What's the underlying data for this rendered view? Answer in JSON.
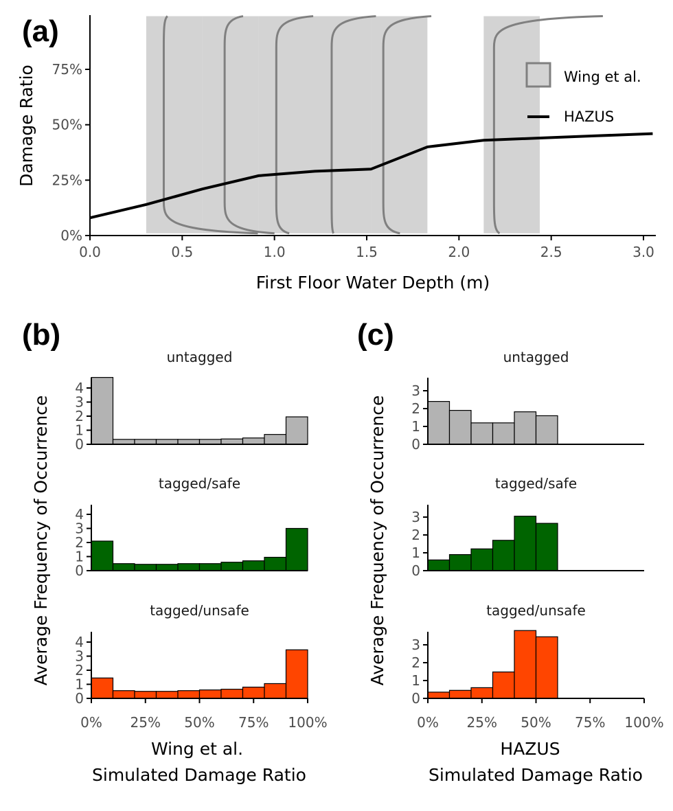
{
  "colors": {
    "hazus_line": "#000000",
    "wing_band": "#d3d3d3",
    "wing_curve": "#808080",
    "untagged": "#b3b3b3",
    "tagged_safe": "#006400",
    "tagged_unsafe": "#ff4500",
    "tick_text": "#4d4d4d"
  },
  "chart_data": [
    {
      "id": "a",
      "panel_label": "(a)",
      "type": "line",
      "xlabel": "First Floor Water Depth (m)",
      "ylabel": "Damage Ratio",
      "xlim": [
        0,
        3.05
      ],
      "ylim": [
        0,
        1.0
      ],
      "x_ticks": [
        0,
        0.5,
        1.0,
        1.5,
        2.0,
        2.5,
        3.0
      ],
      "x_tick_labels": [
        "0.0",
        "0.5",
        "1.0",
        "1.5",
        "2.0",
        "2.5",
        "3.0"
      ],
      "y_ticks": [
        0,
        0.25,
        0.5,
        0.75
      ],
      "y_tick_labels": [
        "0%",
        "25%",
        "50%",
        "75%"
      ],
      "legend_position": "top-right",
      "legend": [
        {
          "name": "Wing et al.",
          "kind": "band"
        },
        {
          "name": "HAZUS",
          "kind": "line"
        }
      ],
      "hazus": {
        "x": [
          0.0,
          0.305,
          0.61,
          0.914,
          1.219,
          1.524,
          1.829,
          2.134,
          2.438,
          2.743,
          3.05
        ],
        "y": [
          0.08,
          0.14,
          0.21,
          0.27,
          0.29,
          0.3,
          0.4,
          0.43,
          0.44,
          0.45,
          0.46
        ]
      },
      "wing_bands": [
        {
          "x_start": 0.305,
          "x_end": 0.61,
          "curve_top_x": 0.42,
          "curve_mid_x": 0.4,
          "curve_bottom_x": 0.91
        },
        {
          "x_start": 0.61,
          "x_end": 0.914,
          "curve_top_x": 0.83,
          "curve_mid_x": 0.73,
          "curve_bottom_x": 1.0
        },
        {
          "x_start": 0.914,
          "x_end": 1.219,
          "curve_top_x": 1.21,
          "curve_mid_x": 1.01,
          "curve_bottom_x": 1.08
        },
        {
          "x_start": 1.219,
          "x_end": 1.524,
          "curve_top_x": 1.55,
          "curve_mid_x": 1.31,
          "curve_bottom_x": 1.32
        },
        {
          "x_start": 1.524,
          "x_end": 1.829,
          "curve_top_x": 1.85,
          "curve_mid_x": 1.59,
          "curve_bottom_x": 1.68
        },
        {
          "x_start": 2.134,
          "x_end": 2.438,
          "curve_top_x": 2.78,
          "curve_mid_x": 2.19,
          "curve_bottom_x": 2.22
        }
      ]
    },
    {
      "id": "b",
      "panel_label": "(b)",
      "type": "bar",
      "xlabel_line1": "Wing et al.",
      "xlabel_line2": "Simulated Damage Ratio",
      "ylabel": "Average Frequency of Occurrence",
      "xlim": [
        0,
        1.0
      ],
      "bin_width": 0.1,
      "bin_starts": [
        0,
        0.1,
        0.2,
        0.3,
        0.4,
        0.5,
        0.6,
        0.7,
        0.8,
        0.9
      ],
      "x_ticks": [
        0,
        0.25,
        0.5,
        0.75,
        1.0
      ],
      "x_tick_labels": [
        "0%",
        "25%",
        "50%",
        "75%",
        "100%"
      ],
      "y_ticks": [
        0,
        1,
        2,
        3,
        4
      ],
      "ylim": [
        0,
        4.8
      ],
      "facets": [
        {
          "title": "untagged",
          "color_key": "untagged",
          "values": [
            4.75,
            0.35,
            0.35,
            0.35,
            0.35,
            0.35,
            0.38,
            0.45,
            0.7,
            1.95
          ]
        },
        {
          "title": "tagged/safe",
          "color_key": "tagged_safe",
          "values": [
            2.1,
            0.5,
            0.45,
            0.45,
            0.5,
            0.5,
            0.6,
            0.7,
            0.95,
            3.0
          ]
        },
        {
          "title": "tagged/unsafe",
          "color_key": "tagged_unsafe",
          "values": [
            1.45,
            0.55,
            0.5,
            0.5,
            0.55,
            0.6,
            0.65,
            0.8,
            1.05,
            3.45
          ]
        }
      ]
    },
    {
      "id": "c",
      "panel_label": "(c)",
      "type": "bar",
      "xlabel_line1": "HAZUS",
      "xlabel_line2": "Simulated Damage Ratio",
      "ylabel": "Average Frequency of Occurrence",
      "xlim": [
        0,
        1.0
      ],
      "bin_width": 0.1,
      "bin_starts": [
        0,
        0.1,
        0.2,
        0.3,
        0.4,
        0.5
      ],
      "x_ticks": [
        0,
        0.25,
        0.5,
        0.75,
        1.0
      ],
      "x_tick_labels": [
        "0%",
        "25%",
        "50%",
        "75%",
        "100%"
      ],
      "y_ticks": [
        0,
        1,
        2,
        3
      ],
      "ylim": [
        0,
        3.8
      ],
      "facets": [
        {
          "title": "untagged",
          "color_key": "untagged",
          "values": [
            2.4,
            1.9,
            1.2,
            1.2,
            1.82,
            1.6
          ]
        },
        {
          "title": "tagged/safe",
          "color_key": "tagged_safe",
          "values": [
            0.6,
            0.9,
            1.22,
            1.7,
            3.05,
            2.65
          ]
        },
        {
          "title": "tagged/unsafe",
          "color_key": "tagged_unsafe",
          "values": [
            0.35,
            0.45,
            0.6,
            1.48,
            3.8,
            3.45
          ]
        }
      ]
    }
  ]
}
